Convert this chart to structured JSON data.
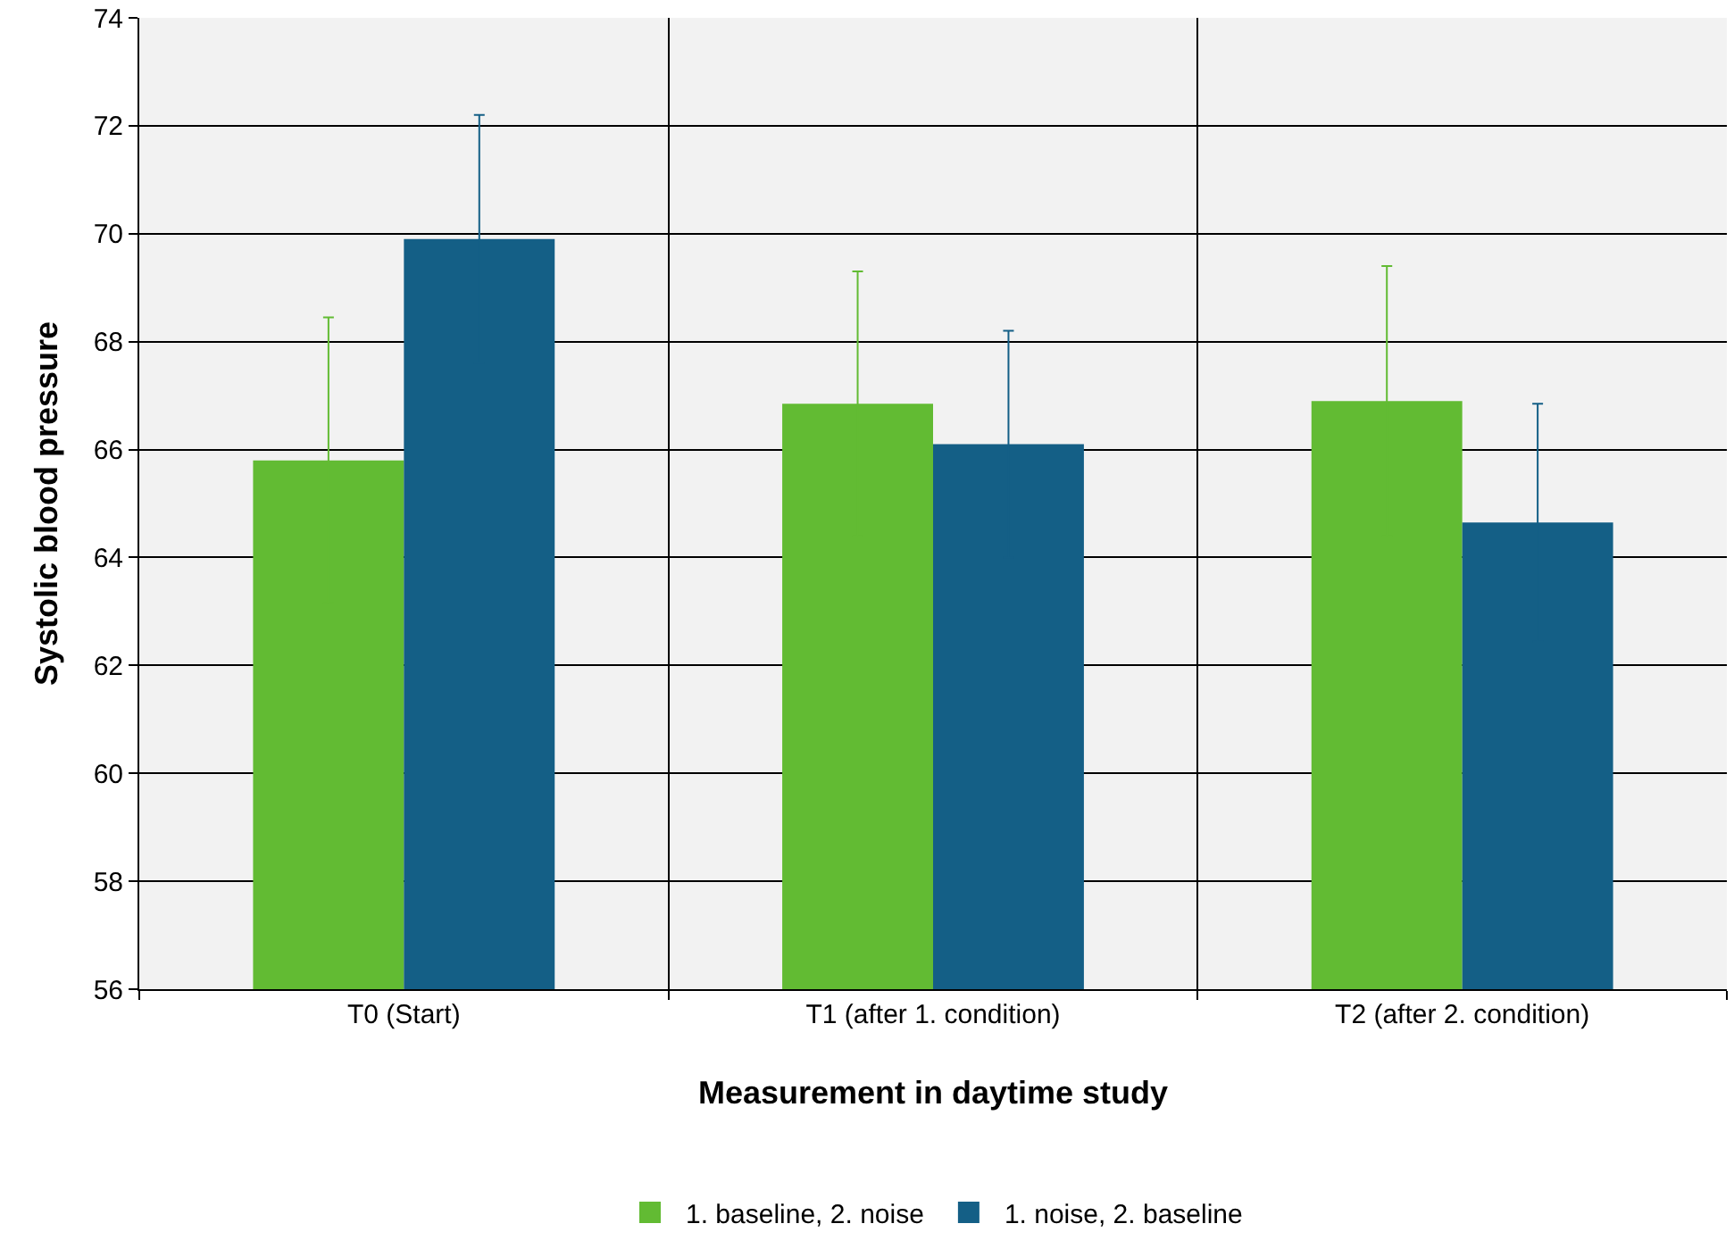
{
  "chart_data": {
    "type": "bar",
    "xlabel": "Measurement in daytime study",
    "ylabel": "Systolic blood pressure",
    "categories": [
      "T0 (Start)",
      "T1 (after 1. condition)",
      "T2 (after 2. condition)"
    ],
    "series": [
      {
        "name": "1. baseline, 2. noise",
        "color": "#62bb33",
        "values": [
          65.8,
          66.85,
          66.9
        ],
        "errors": [
          2.65,
          2.45,
          2.5
        ]
      },
      {
        "name": "1. noise, 2. baseline",
        "color": "#145f86",
        "values": [
          69.9,
          66.1,
          64.65
        ],
        "errors": [
          2.3,
          2.1,
          2.2
        ]
      }
    ],
    "ylim": [
      56,
      74
    ],
    "yticks": [
      56,
      58,
      60,
      62,
      64,
      66,
      68,
      70,
      72,
      74
    ],
    "grid": true,
    "legend": "bottom"
  }
}
